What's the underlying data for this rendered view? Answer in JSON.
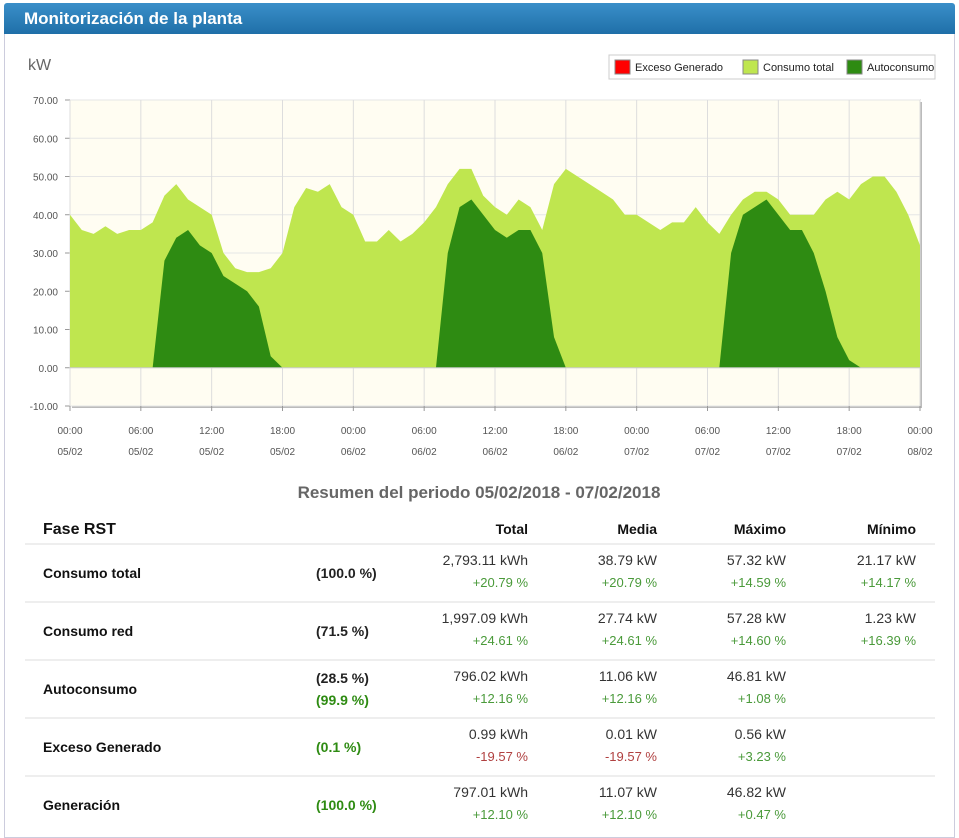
{
  "header": {
    "title": "Monitorización de la planta"
  },
  "chart_data": {
    "type": "area",
    "ylabel": "kW",
    "legend": "top-right",
    "grid": true,
    "xlim": [
      0,
      72
    ],
    "xticks": [
      {
        "value": 0,
        "label": [
          "00:00",
          "05/02"
        ]
      },
      {
        "value": 6,
        "label": [
          "06:00",
          "05/02"
        ]
      },
      {
        "value": 12,
        "label": [
          "12:00",
          "05/02"
        ]
      },
      {
        "value": 18,
        "label": [
          "18:00",
          "05/02"
        ]
      },
      {
        "value": 24,
        "label": [
          "00:00",
          "06/02"
        ]
      },
      {
        "value": 30,
        "label": [
          "06:00",
          "06/02"
        ]
      },
      {
        "value": 36,
        "label": [
          "12:00",
          "06/02"
        ]
      },
      {
        "value": 42,
        "label": [
          "18:00",
          "06/02"
        ]
      },
      {
        "value": 48,
        "label": [
          "00:00",
          "07/02"
        ]
      },
      {
        "value": 54,
        "label": [
          "06:00",
          "07/02"
        ]
      },
      {
        "value": 60,
        "label": [
          "12:00",
          "07/02"
        ]
      },
      {
        "value": 66,
        "label": [
          "18:00",
          "07/02"
        ]
      },
      {
        "value": 72,
        "label": [
          "00:00",
          "08/02"
        ]
      }
    ],
    "ylim": [
      -10,
      70
    ],
    "yticks": [
      {
        "value": -10,
        "label": "-10.00"
      },
      {
        "value": 0,
        "label": "0.00"
      },
      {
        "value": 10,
        "label": "10.00"
      },
      {
        "value": 20,
        "label": "20.00"
      },
      {
        "value": 30,
        "label": "30.00"
      },
      {
        "value": 40,
        "label": "40.00"
      },
      {
        "value": 50,
        "label": "50.00"
      },
      {
        "value": 60,
        "label": "60.00"
      },
      {
        "value": 70,
        "label": "70.00"
      }
    ],
    "x": [
      0,
      1,
      2,
      3,
      4,
      5,
      6,
      7,
      8,
      9,
      10,
      11,
      12,
      13,
      14,
      15,
      16,
      17,
      18,
      19,
      20,
      21,
      22,
      23,
      24,
      25,
      26,
      27,
      28,
      29,
      30,
      31,
      32,
      33,
      34,
      35,
      36,
      37,
      38,
      39,
      40,
      41,
      42,
      43,
      44,
      45,
      46,
      47,
      48,
      49,
      50,
      51,
      52,
      53,
      54,
      55,
      56,
      57,
      58,
      59,
      60,
      61,
      62,
      63,
      64,
      65,
      66,
      67,
      68,
      69,
      70,
      71,
      72
    ],
    "series": [
      {
        "name": "Exceso Generado",
        "color": "#ff0000",
        "values": [
          0,
          0,
          0,
          0,
          0,
          0,
          0,
          0,
          0,
          0,
          0,
          0,
          0,
          0,
          0,
          0,
          0,
          0,
          0,
          0,
          0,
          0,
          0,
          0,
          0,
          0,
          0,
          0,
          0,
          0,
          0,
          0,
          0,
          0,
          0,
          0,
          0,
          0,
          0,
          0,
          0,
          0,
          0,
          0,
          0,
          0,
          0,
          0,
          0,
          0,
          0,
          0,
          0,
          0,
          0,
          0,
          0,
          0,
          0,
          0,
          0,
          0,
          0,
          0,
          0,
          0,
          0,
          0,
          0,
          0,
          0,
          0,
          0
        ]
      },
      {
        "name": "Consumo total",
        "color": "#bfe64f",
        "values": [
          40,
          36,
          35,
          37,
          35,
          36,
          36,
          38,
          45,
          48,
          44,
          42,
          40,
          30,
          26,
          25,
          25,
          26,
          30,
          42,
          47,
          46,
          48,
          42,
          40,
          33,
          33,
          36,
          33,
          35,
          38,
          42,
          48,
          52,
          52,
          45,
          42,
          40,
          44,
          42,
          36,
          48,
          52,
          50,
          48,
          46,
          44,
          40,
          40,
          38,
          36,
          38,
          38,
          42,
          38,
          35,
          40,
          44,
          46,
          46,
          44,
          40,
          40,
          40,
          44,
          46,
          44,
          48,
          50,
          50,
          46,
          40,
          32
        ]
      },
      {
        "name": "Autoconsumo",
        "color": "#2e8b12",
        "values": [
          0,
          0,
          0,
          0,
          0,
          0,
          0,
          0,
          28,
          34,
          36,
          32,
          30,
          24,
          22,
          20,
          16,
          3,
          0,
          0,
          0,
          0,
          0,
          0,
          0,
          0,
          0,
          0,
          0,
          0,
          0,
          0,
          30,
          42,
          44,
          40,
          36,
          34,
          36,
          36,
          30,
          8,
          0,
          0,
          0,
          0,
          0,
          0,
          0,
          0,
          0,
          0,
          0,
          0,
          0,
          0,
          30,
          40,
          42,
          44,
          40,
          36,
          36,
          30,
          20,
          8,
          2,
          0,
          0,
          0,
          0,
          0,
          0
        ]
      }
    ]
  },
  "summary": {
    "title": "Resumen del periodo 05/02/2018 - 07/02/2018",
    "columns": [
      "Fase RST",
      "Total",
      "Media",
      "Máximo",
      "Mínimo"
    ],
    "rows": [
      {
        "name": "Consumo total",
        "pct": [
          {
            "text": "(100.0 %)",
            "color": "#222"
          }
        ],
        "cells": [
          [
            {
              "text": "2,793.11 kWh",
              "color": "#333"
            },
            {
              "text": "+20.79 %",
              "color": "#4a9a3a"
            }
          ],
          [
            {
              "text": "38.79 kW",
              "color": "#333"
            },
            {
              "text": "+20.79 %",
              "color": "#4a9a3a"
            }
          ],
          [
            {
              "text": "57.32 kW",
              "color": "#333"
            },
            {
              "text": "+14.59 %",
              "color": "#4a9a3a"
            }
          ],
          [
            {
              "text": "21.17 kW",
              "color": "#333"
            },
            {
              "text": "+14.17 %",
              "color": "#4a9a3a"
            }
          ]
        ]
      },
      {
        "name": "Consumo red",
        "pct": [
          {
            "text": "(71.5 %)",
            "color": "#222"
          }
        ],
        "cells": [
          [
            {
              "text": "1,997.09 kWh",
              "color": "#333"
            },
            {
              "text": "+24.61 %",
              "color": "#4a9a3a"
            }
          ],
          [
            {
              "text": "27.74 kW",
              "color": "#333"
            },
            {
              "text": "+24.61 %",
              "color": "#4a9a3a"
            }
          ],
          [
            {
              "text": "57.28 kW",
              "color": "#333"
            },
            {
              "text": "+14.60 %",
              "color": "#4a9a3a"
            }
          ],
          [
            {
              "text": "1.23 kW",
              "color": "#333"
            },
            {
              "text": "+16.39 %",
              "color": "#4a9a3a"
            }
          ]
        ]
      },
      {
        "name": "Autoconsumo",
        "pct": [
          {
            "text": "(28.5 %)",
            "color": "#222"
          },
          {
            "text": "(99.9 %)",
            "color": "#2e8b12"
          }
        ],
        "cells": [
          [
            {
              "text": "796.02 kWh",
              "color": "#333"
            },
            {
              "text": "+12.16 %",
              "color": "#4a9a3a"
            }
          ],
          [
            {
              "text": "11.06 kW",
              "color": "#333"
            },
            {
              "text": "+12.16 %",
              "color": "#4a9a3a"
            }
          ],
          [
            {
              "text": "46.81 kW",
              "color": "#333"
            },
            {
              "text": "+1.08 %",
              "color": "#4a9a3a"
            }
          ]
        ]
      },
      {
        "name": "Exceso Generado",
        "pct": [
          {
            "text": "(0.1 %)",
            "color": "#2e8b12"
          }
        ],
        "cells": [
          [
            {
              "text": "0.99 kWh",
              "color": "#333"
            },
            {
              "text": "-19.57 %",
              "color": "#b04040"
            }
          ],
          [
            {
              "text": "0.01 kW",
              "color": "#333"
            },
            {
              "text": "-19.57 %",
              "color": "#b04040"
            }
          ],
          [
            {
              "text": "0.56 kW",
              "color": "#333"
            },
            {
              "text": "+3.23 %",
              "color": "#4a9a3a"
            }
          ]
        ]
      },
      {
        "name": "Generación",
        "pct": [
          {
            "text": "(100.0 %)",
            "color": "#2e8b12"
          }
        ],
        "cells": [
          [
            {
              "text": "797.01 kWh",
              "color": "#333"
            },
            {
              "text": "+12.10 %",
              "color": "#4a9a3a"
            }
          ],
          [
            {
              "text": "11.07 kW",
              "color": "#333"
            },
            {
              "text": "+12.10 %",
              "color": "#4a9a3a"
            }
          ],
          [
            {
              "text": "46.82 kW",
              "color": "#333"
            },
            {
              "text": "+0.47 %",
              "color": "#4a9a3a"
            }
          ]
        ]
      }
    ]
  }
}
